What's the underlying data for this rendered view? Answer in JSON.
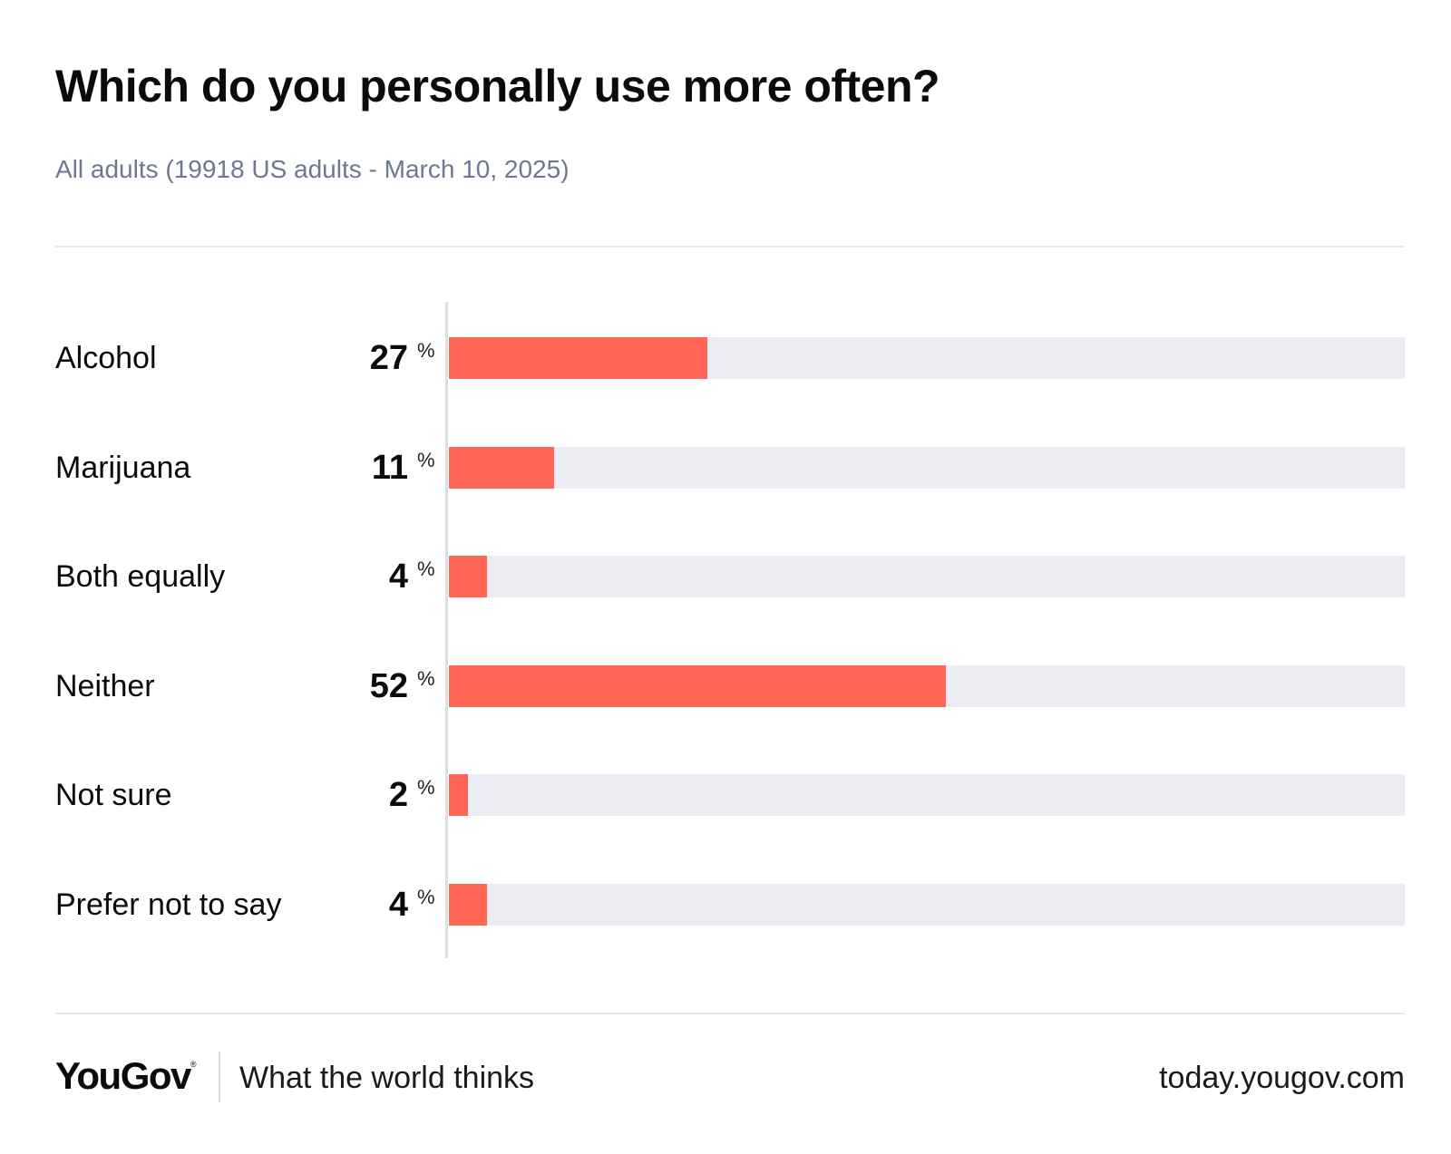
{
  "header": {
    "title": "Which do you personally use more often?",
    "subtitle": "All adults (19918 US adults - March 10, 2025)"
  },
  "colors": {
    "bar_fill": "#ff6656",
    "bar_track": "#ecedf2",
    "subtitle": "#6e7893"
  },
  "chart_data": {
    "type": "bar",
    "orientation": "horizontal",
    "title": "Which do you personally use more often?",
    "subtitle": "All adults (19918 US adults - March 10, 2025)",
    "unit": "%",
    "categories": [
      "Alcohol",
      "Marijuana",
      "Both equally",
      "Neither",
      "Not sure",
      "Prefer not to say"
    ],
    "values": [
      27,
      11,
      4,
      52,
      2,
      4
    ],
    "value_labels": [
      "27",
      "11",
      "4",
      "52",
      "2",
      "4"
    ],
    "xlim": [
      0,
      100
    ],
    "grid": false,
    "legend": "none"
  },
  "footer": {
    "logo": "YouGov",
    "logo_mark": "®",
    "tagline": "What the world thinks",
    "url": "today.yougov.com"
  }
}
